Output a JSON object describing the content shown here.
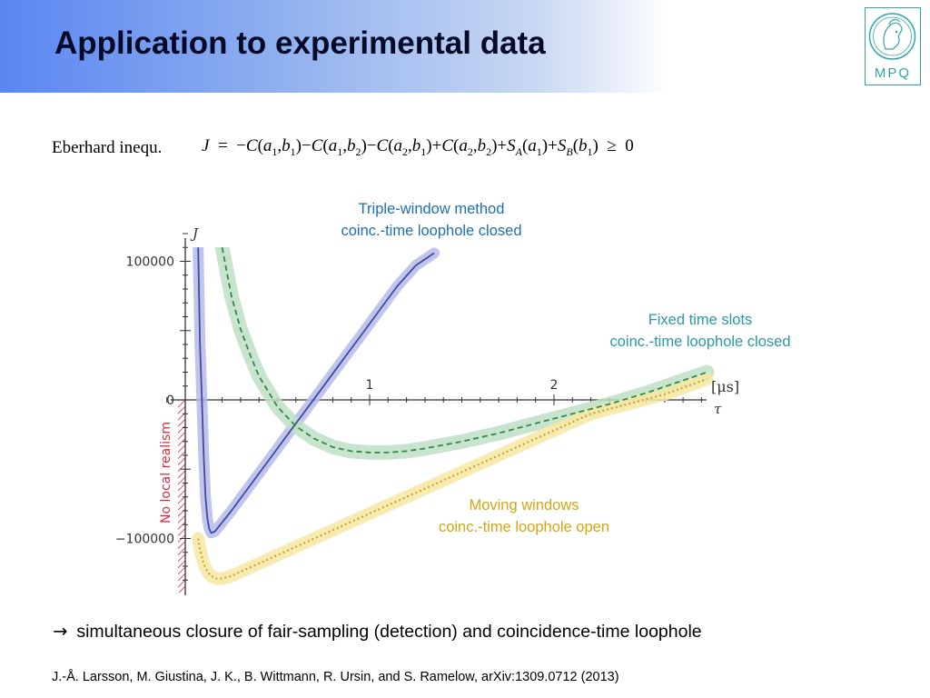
{
  "slide": {
    "title": "Application to experimental data",
    "logo_text": "MPQ",
    "equation_label": "Eberhard inequ.",
    "bullet_arrow": "→",
    "bullet_text": "simultaneous closure of fair-sampling (detection) and coincidence-time loophole",
    "citation": "J.-Å. Larsson, M. Giustina, J. K., B. Wittmann, R. Ursin, and S. Ramelow, arXiv:1309.0712 (2013)"
  },
  "colors": {
    "header_gradient_start": "#5b86f2",
    "triple_window": "#3f4ba3",
    "triple_window_band": "#b7bbe8",
    "fixed_slots": "#2e8b48",
    "fixed_slots_band": "#bfdfc6",
    "moving_windows": "#c9a82c",
    "moving_windows_band": "#f7e7a4",
    "triple_label": "#1f6fb8",
    "fixed_label": "#2a9aa6",
    "moving_label": "#d7a514",
    "no_local_realism": "#e0263a"
  },
  "chart_data": {
    "type": "line",
    "ylabel": "J",
    "xlabel": "τ",
    "x_unit": "[μs]",
    "region_label": "No local realism",
    "xlim": [
      -0.08,
      2.9
    ],
    "ylim": [
      -138000,
      125000
    ],
    "x_ticks": [
      1,
      2
    ],
    "y_ticks": [
      100000,
      0,
      -100000
    ],
    "y_tick_labels": [
      "100000",
      "0",
      "−100000"
    ],
    "series": [
      {
        "key": "triple",
        "label_lines": [
          "Triple-window method",
          "coinc.-time loophole closed"
        ],
        "style": "solid",
        "x": [
          0.07,
          0.08,
          0.09,
          0.1,
          0.11,
          0.12,
          0.13,
          0.14,
          0.16,
          0.19,
          0.25,
          0.35,
          0.45,
          0.55,
          0.65,
          0.75,
          0.85,
          0.95,
          1.05,
          1.15,
          1.25,
          1.35
        ],
        "y": [
          110000,
          40000,
          0,
          -40000,
          -70000,
          -86000,
          -93000,
          -96000,
          -95000,
          -90000,
          -80000,
          -62000,
          -44000,
          -26000,
          -8000,
          10000,
          28000,
          46000,
          64000,
          82000,
          97000,
          106000
        ]
      },
      {
        "key": "fixed",
        "label_lines": [
          "Fixed time slots",
          "coinc.-time loophole closed"
        ],
        "style": "dashed",
        "x": [
          0.2,
          0.25,
          0.3,
          0.35,
          0.4,
          0.5,
          0.6,
          0.7,
          0.8,
          0.9,
          1.0,
          1.1,
          1.2,
          1.3,
          1.5,
          1.7,
          1.9,
          2.1,
          2.3,
          2.5,
          2.7,
          2.83
        ],
        "y": [
          110000,
          75000,
          51000,
          33000,
          17000,
          -5000,
          -19000,
          -28000,
          -34000,
          -37000,
          -38000,
          -38000,
          -37000,
          -35000,
          -30000,
          -24000,
          -17000,
          -10000,
          -3000,
          5000,
          14000,
          20000
        ]
      },
      {
        "key": "moving",
        "label_lines": [
          "Moving windows",
          "coinc.-time loophole open"
        ],
        "style": "dotted",
        "x": [
          0.07,
          0.08,
          0.09,
          0.1,
          0.12,
          0.14,
          0.17,
          0.2,
          0.25,
          0.3,
          0.4,
          0.6,
          0.8,
          1.0,
          1.4,
          1.8,
          2.2,
          2.6,
          2.83
        ],
        "y": [
          -100000,
          -108000,
          -113000,
          -118000,
          -124000,
          -127000,
          -129000,
          -129000,
          -127000,
          -124000,
          -118000,
          -106000,
          -94000,
          -82000,
          -58000,
          -34000,
          -10000,
          4000,
          15000
        ]
      }
    ]
  }
}
